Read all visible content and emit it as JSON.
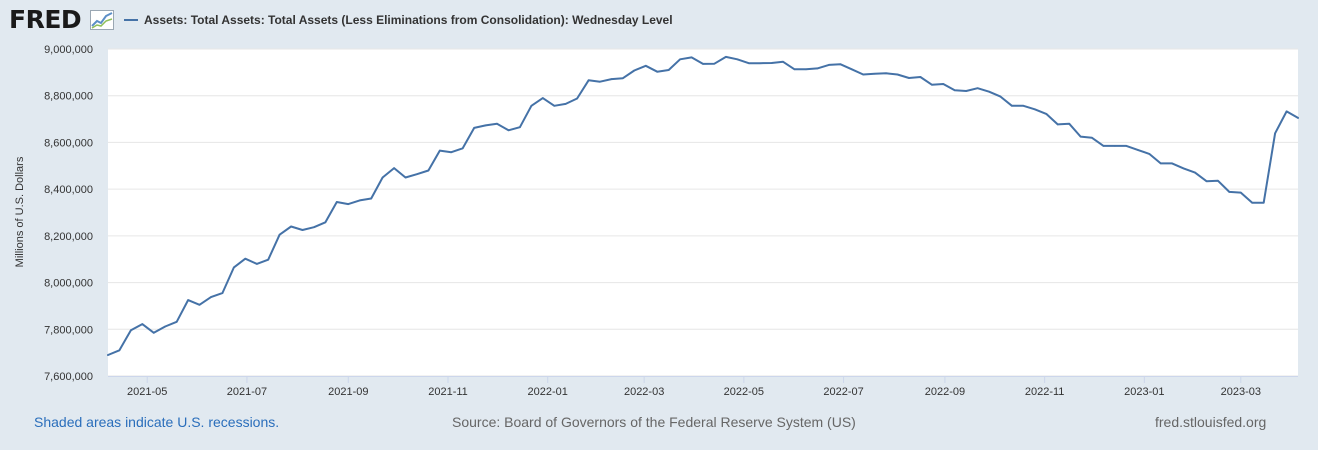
{
  "header": {
    "logo_text": "FRED",
    "logo_icon": "fred-chart-icon"
  },
  "colors": {
    "background": "#e1e9f0",
    "plot_background": "#ffffff",
    "series": "#4572a7",
    "gridline": "#e6e6e6"
  },
  "footer": {
    "recession_note": "Shaded areas indicate U.S. recessions.",
    "source": "Source: Board of Governors of the Federal Reserve System (US)",
    "url": "fred.stlouisfed.org"
  },
  "chart_data": {
    "type": "line",
    "title": "",
    "xlabel": "",
    "ylabel": "Millions of U.S. Dollars",
    "ylim": [
      7600000,
      9000000
    ],
    "xlim": [
      "2021-04-07",
      "2023-04-05"
    ],
    "grid": true,
    "legend_position": "top-left",
    "y_ticks": [
      7600000,
      7800000,
      8000000,
      8200000,
      8400000,
      8600000,
      8800000,
      9000000
    ],
    "y_tick_labels": [
      "7,600,000",
      "7,800,000",
      "8,000,000",
      "8,200,000",
      "8,400,000",
      "8,600,000",
      "8,800,000",
      "9,000,000"
    ],
    "x_ticks": [
      "2021-05-01",
      "2021-07-01",
      "2021-09-01",
      "2021-11-01",
      "2022-01-01",
      "2022-03-01",
      "2022-05-01",
      "2022-07-01",
      "2022-09-01",
      "2022-11-01",
      "2023-01-01",
      "2023-03-01"
    ],
    "x_tick_labels": [
      "2021-05",
      "2021-07",
      "2021-09",
      "2021-11",
      "2022-01",
      "2022-03",
      "2022-05",
      "2022-07",
      "2022-09",
      "2022-11",
      "2023-01",
      "2023-03"
    ],
    "series": [
      {
        "name": "Assets: Total Assets: Total Assets (Less Eliminations from Consolidation): Wednesday Level",
        "x": [
          "2021-04-07",
          "2021-04-14",
          "2021-04-21",
          "2021-04-28",
          "2021-05-05",
          "2021-05-12",
          "2021-05-19",
          "2021-05-26",
          "2021-06-02",
          "2021-06-09",
          "2021-06-16",
          "2021-06-23",
          "2021-06-30",
          "2021-07-07",
          "2021-07-14",
          "2021-07-21",
          "2021-07-28",
          "2021-08-04",
          "2021-08-11",
          "2021-08-18",
          "2021-08-25",
          "2021-09-01",
          "2021-09-08",
          "2021-09-15",
          "2021-09-22",
          "2021-09-29",
          "2021-10-06",
          "2021-10-13",
          "2021-10-20",
          "2021-10-27",
          "2021-11-03",
          "2021-11-10",
          "2021-11-17",
          "2021-11-24",
          "2021-12-01",
          "2021-12-08",
          "2021-12-15",
          "2021-12-22",
          "2021-12-29",
          "2022-01-05",
          "2022-01-12",
          "2022-01-19",
          "2022-01-26",
          "2022-02-02",
          "2022-02-09",
          "2022-02-16",
          "2022-02-23",
          "2022-03-02",
          "2022-03-09",
          "2022-03-16",
          "2022-03-23",
          "2022-03-30",
          "2022-04-06",
          "2022-04-13",
          "2022-04-20",
          "2022-04-27",
          "2022-05-04",
          "2022-05-11",
          "2022-05-18",
          "2022-05-25",
          "2022-06-01",
          "2022-06-08",
          "2022-06-15",
          "2022-06-22",
          "2022-06-29",
          "2022-07-06",
          "2022-07-13",
          "2022-07-20",
          "2022-07-27",
          "2022-08-03",
          "2022-08-10",
          "2022-08-17",
          "2022-08-24",
          "2022-08-31",
          "2022-09-07",
          "2022-09-14",
          "2022-09-21",
          "2022-09-28",
          "2022-10-05",
          "2022-10-12",
          "2022-10-19",
          "2022-10-26",
          "2022-11-02",
          "2022-11-09",
          "2022-11-16",
          "2022-11-23",
          "2022-11-30",
          "2022-12-07",
          "2022-12-14",
          "2022-12-21",
          "2022-12-28",
          "2023-01-04",
          "2023-01-11",
          "2023-01-18",
          "2023-01-25",
          "2023-02-01",
          "2023-02-08",
          "2023-02-15",
          "2023-02-22",
          "2023-03-01",
          "2023-03-08",
          "2023-03-15",
          "2023-03-22",
          "2023-03-29",
          "2023-04-05"
        ],
        "values": [
          7690000,
          7710000,
          7796000,
          7822000,
          7785000,
          7812000,
          7832000,
          7925000,
          7905000,
          7938000,
          7955000,
          8065000,
          8102000,
          8080000,
          8098000,
          8205000,
          8240000,
          8225000,
          8237000,
          8258000,
          8345000,
          8336000,
          8352000,
          8360000,
          8450000,
          8490000,
          8450000,
          8464000,
          8480000,
          8565000,
          8558000,
          8575000,
          8662000,
          8673000,
          8680000,
          8652000,
          8665000,
          8757000,
          8790000,
          8757000,
          8765000,
          8788000,
          8866000,
          8860000,
          8871000,
          8875000,
          8908000,
          8928000,
          8903000,
          8910000,
          8956000,
          8964000,
          8936000,
          8937000,
          8966000,
          8956000,
          8939000,
          8939000,
          8940000,
          8945000,
          8913000,
          8913000,
          8917000,
          8932000,
          8935000,
          8913000,
          8891000,
          8894000,
          8896000,
          8891000,
          8876000,
          8880000,
          8847000,
          8850000,
          8823000,
          8820000,
          8832000,
          8817000,
          8796000,
          8757000,
          8757000,
          8742000,
          8722000,
          8677000,
          8680000,
          8625000,
          8620000,
          8585000,
          8585000,
          8585000,
          8568000,
          8551000,
          8510000,
          8510000,
          8489000,
          8471000,
          8434000,
          8436000,
          8388000,
          8385000,
          8342000,
          8342000,
          8639000,
          8733000,
          8705000
        ]
      }
    ]
  }
}
